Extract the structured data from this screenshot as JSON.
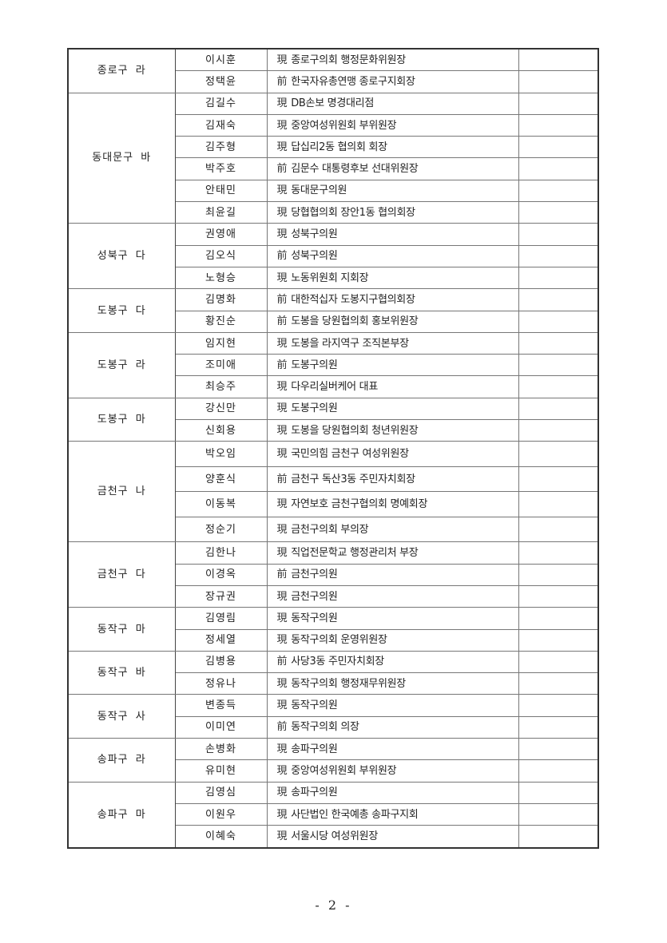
{
  "groups": [
    {
      "district": "종로구 라",
      "members": [
        {
          "name": "이시훈",
          "prefix": "現",
          "role": "종로구의회 행정문화위원장"
        },
        {
          "name": "정택윤",
          "prefix": "前",
          "role": "한국자유총연맹 종로구지회장"
        }
      ]
    },
    {
      "district": "동대문구 바",
      "members": [
        {
          "name": "김길수",
          "prefix": "現",
          "role": "DB손보 명경대리점"
        },
        {
          "name": "김재숙",
          "prefix": "現",
          "role": "중앙여성위원회 부위원장"
        },
        {
          "name": "김주형",
          "prefix": "現",
          "role": "답십리2동 협의회 회장"
        },
        {
          "name": "박주호",
          "prefix": "前",
          "role": "김문수 대통령후보 선대위원장"
        },
        {
          "name": "안태민",
          "prefix": "現",
          "role": "동대문구의원"
        },
        {
          "name": "최윤길",
          "prefix": "現",
          "role": "당협협의회 장안1동 협의회장"
        }
      ]
    },
    {
      "district": "성북구 다",
      "members": [
        {
          "name": "권영애",
          "prefix": "現",
          "role": "성북구의원"
        },
        {
          "name": "김오식",
          "prefix": "前",
          "role": "성북구의원"
        },
        {
          "name": "노형승",
          "prefix": "現",
          "role": "노동위원회 지회장"
        }
      ]
    },
    {
      "district": "도봉구 다",
      "members": [
        {
          "name": "김명화",
          "prefix": "前",
          "role": "대한적십자 도봉지구협의회장"
        },
        {
          "name": "황진순",
          "prefix": "前",
          "role": "도봉을 당원협의회 홍보위원장"
        }
      ]
    },
    {
      "district": "도봉구 라",
      "members": [
        {
          "name": "임지현",
          "prefix": "現",
          "role": "도봉을 라지역구 조직본부장"
        },
        {
          "name": "조미애",
          "prefix": "前",
          "role": "도봉구의원"
        },
        {
          "name": "최승주",
          "prefix": "現",
          "role": "다우리실버케어 대표"
        }
      ]
    },
    {
      "district": "도봉구 마",
      "members": [
        {
          "name": "강신만",
          "prefix": "現",
          "role": "도봉구의원"
        },
        {
          "name": "신회용",
          "prefix": "現",
          "role": "도봉을 당원협의회 청년위원장"
        }
      ]
    },
    {
      "district": "금천구 나",
      "tall": true,
      "members": [
        {
          "name": "박오임",
          "prefix": "現",
          "role": "국민의힘 금천구 여성위원장"
        },
        {
          "name": "양훈식",
          "prefix": "前",
          "role": "금천구 독산3동 주민자치회장"
        },
        {
          "name": "이동복",
          "prefix": "現",
          "role": "자연보호 금천구협의회 명예회장"
        },
        {
          "name": "정순기",
          "prefix": "現",
          "role": "금천구의회 부의장"
        }
      ]
    },
    {
      "district": "금천구 다",
      "members": [
        {
          "name": "김한나",
          "prefix": "現",
          "role": "직업전문학교 행정관리처 부장"
        },
        {
          "name": "이경옥",
          "prefix": "前",
          "role": "금천구의원"
        },
        {
          "name": "장규권",
          "prefix": "現",
          "role": "금천구의원"
        }
      ]
    },
    {
      "district": "동작구 마",
      "members": [
        {
          "name": "김영림",
          "prefix": "現",
          "role": "동작구의원"
        },
        {
          "name": "정세열",
          "prefix": "現",
          "role": "동작구의회 운영위원장"
        }
      ]
    },
    {
      "district": "동작구 바",
      "members": [
        {
          "name": "김병용",
          "prefix": "前",
          "role": "사당3동 주민자치회장"
        },
        {
          "name": "정유나",
          "prefix": "現",
          "role": "동작구의회 행정재무위원장"
        }
      ]
    },
    {
      "district": "동작구 사",
      "members": [
        {
          "name": "변종득",
          "prefix": "現",
          "role": "동작구의원"
        },
        {
          "name": "이미연",
          "prefix": "前",
          "role": "동작구의회 의장"
        }
      ]
    },
    {
      "district": "송파구 라",
      "members": [
        {
          "name": "손병화",
          "prefix": "現",
          "role": "송파구의원"
        },
        {
          "name": "유미현",
          "prefix": "現",
          "role": "중앙여성위원회 부위원장"
        }
      ]
    },
    {
      "district": "송파구 마",
      "members": [
        {
          "name": "김영심",
          "prefix": "現",
          "role": "송파구의원"
        },
        {
          "name": "이원우",
          "prefix": "現",
          "role": "사단법인 한국예총 송파구지회"
        },
        {
          "name": "이혜숙",
          "prefix": "現",
          "role": "서울시당 여성위원장"
        }
      ]
    }
  ],
  "page_number": "- 2 -"
}
